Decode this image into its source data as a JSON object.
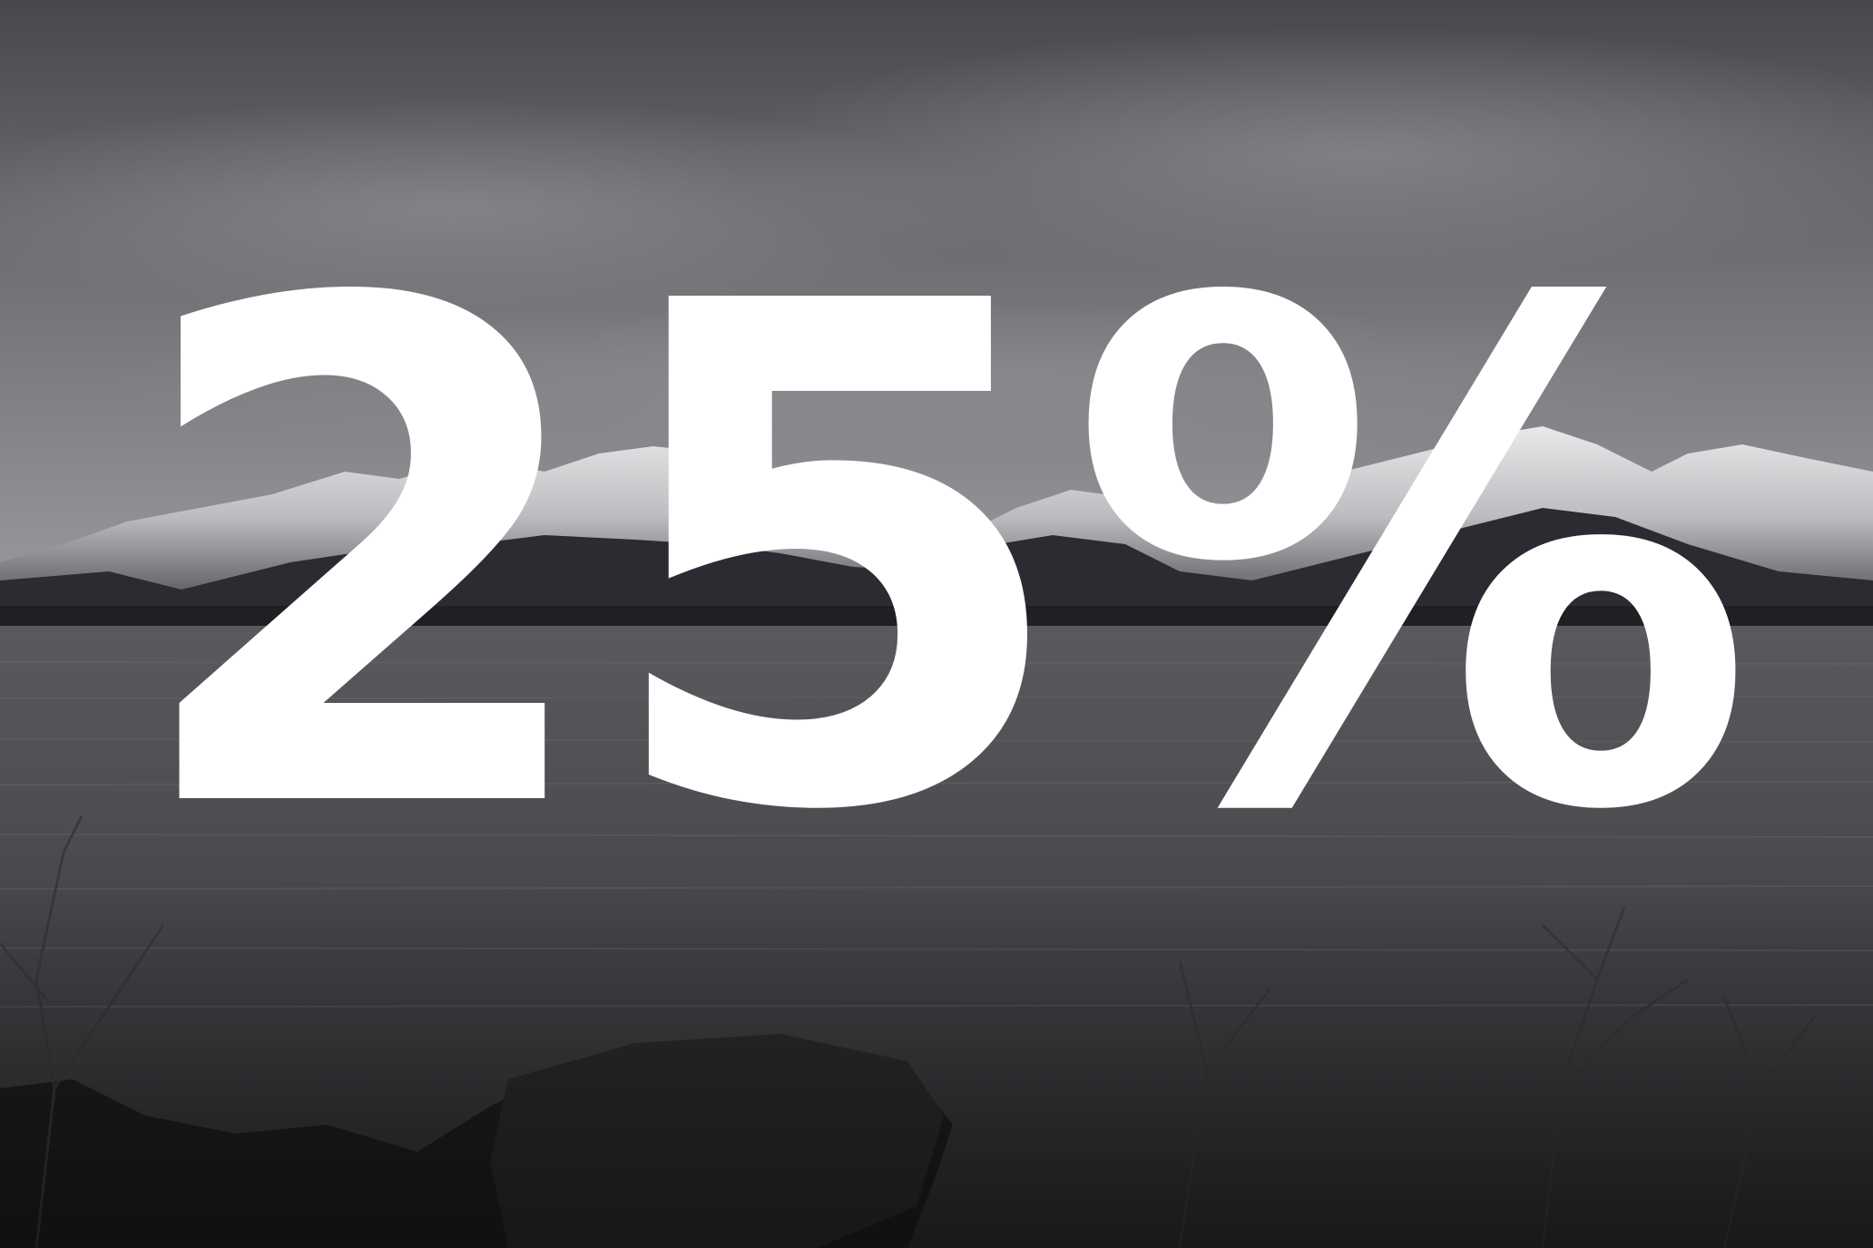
{
  "headline": {
    "text": "25%",
    "color": "#ffffff"
  },
  "scene": {
    "description_icons": [
      "overcast-sky",
      "snowy-mountain-range",
      "lake-water",
      "shoreline-rocks",
      "bare-branches"
    ],
    "palette": {
      "sky_top": "#4e4e52",
      "sky_mid": "#77777b",
      "sky_horizon": "#9a9a9f",
      "snow": "#e8e8ea",
      "rock_dark": "#2a2b30",
      "water_top": "#58585c",
      "water_bottom": "#2e2e31",
      "foreground": "#1c1c1e"
    }
  }
}
